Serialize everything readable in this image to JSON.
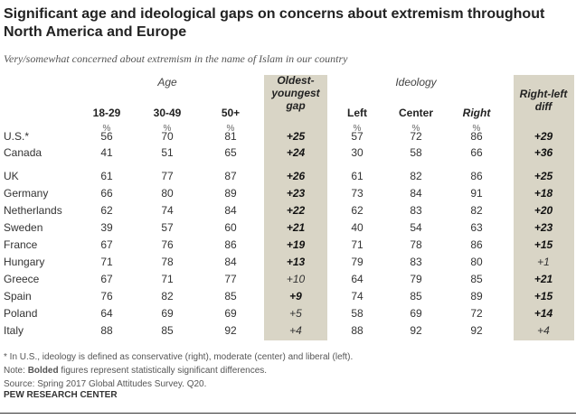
{
  "title": "Significant age and ideological gaps on concerns about extremism throughout North America and Europe",
  "subtitle": "Very/somewhat concerned about extremism in the name of Islam in our country",
  "groups": {
    "age": "Age",
    "ideology": "Ideology"
  },
  "columns": [
    {
      "label": "18-29",
      "pct": "%"
    },
    {
      "label": "30-49",
      "pct": "%"
    },
    {
      "label": "50+",
      "pct": "%"
    },
    {
      "label": "Oldest-youngest gap",
      "lines": [
        "Oldest-",
        "youngest",
        "gap"
      ],
      "pct": ""
    },
    {
      "label": "Left",
      "pct": "%"
    },
    {
      "label": "Center",
      "pct": "%"
    },
    {
      "label": "Right",
      "pct": "%"
    },
    {
      "label": "Right-left diff",
      "lines": [
        "Right-left",
        "diff"
      ],
      "pct": ""
    }
  ],
  "chart_data": {
    "type": "table",
    "title": "Significant age and ideological gaps on concerns about extremism throughout North America and Europe",
    "rows": [
      {
        "country": "U.S.*",
        "values": [
          "56",
          "70",
          "81",
          "+25",
          "57",
          "72",
          "86",
          "+29"
        ],
        "gap_bold": true,
        "diff_bold": true
      },
      {
        "country": "Canada",
        "values": [
          "41",
          "51",
          "65",
          "+24",
          "30",
          "58",
          "66",
          "+36"
        ],
        "gap_bold": true,
        "diff_bold": true
      },
      {
        "country": "UK",
        "values": [
          "61",
          "77",
          "87",
          "+26",
          "61",
          "82",
          "86",
          "+25"
        ],
        "gap_bold": true,
        "diff_bold": true
      },
      {
        "country": "Germany",
        "values": [
          "66",
          "80",
          "89",
          "+23",
          "73",
          "84",
          "91",
          "+18"
        ],
        "gap_bold": true,
        "diff_bold": true
      },
      {
        "country": "Netherlands",
        "values": [
          "62",
          "74",
          "84",
          "+22",
          "62",
          "83",
          "82",
          "+20"
        ],
        "gap_bold": true,
        "diff_bold": true
      },
      {
        "country": "Sweden",
        "values": [
          "39",
          "57",
          "60",
          "+21",
          "40",
          "54",
          "63",
          "+23"
        ],
        "gap_bold": true,
        "diff_bold": true
      },
      {
        "country": "France",
        "values": [
          "67",
          "76",
          "86",
          "+19",
          "71",
          "78",
          "86",
          "+15"
        ],
        "gap_bold": true,
        "diff_bold": true
      },
      {
        "country": "Hungary",
        "values": [
          "71",
          "78",
          "84",
          "+13",
          "79",
          "83",
          "80",
          "+1"
        ],
        "gap_bold": true,
        "diff_bold": false
      },
      {
        "country": "Greece",
        "values": [
          "67",
          "71",
          "77",
          "+10",
          "64",
          "79",
          "85",
          "+21"
        ],
        "gap_bold": false,
        "diff_bold": true
      },
      {
        "country": "Spain",
        "values": [
          "76",
          "82",
          "85",
          "+9",
          "74",
          "85",
          "89",
          "+15"
        ],
        "gap_bold": true,
        "diff_bold": true
      },
      {
        "country": "Poland",
        "values": [
          "64",
          "69",
          "69",
          "+5",
          "58",
          "69",
          "72",
          "+14"
        ],
        "gap_bold": false,
        "diff_bold": true
      },
      {
        "country": "Italy",
        "values": [
          "88",
          "85",
          "92",
          "+4",
          "88",
          "92",
          "92",
          "+4"
        ],
        "gap_bold": false,
        "diff_bold": false
      }
    ]
  },
  "footnotes": {
    "asterisk": "* In U.S., ideology is defined as conservative (right), moderate (center) and liberal (left).",
    "note_prefix": "Note: ",
    "note_bold": "Bolded",
    "note_rest": " figures represent statistically significant differences.",
    "source": "Source: Spring 2017 Global Attitudes Survey. Q20."
  },
  "logo": "PEW RESEARCH CENTER",
  "colors": {
    "shade": "#d9d5c6"
  }
}
